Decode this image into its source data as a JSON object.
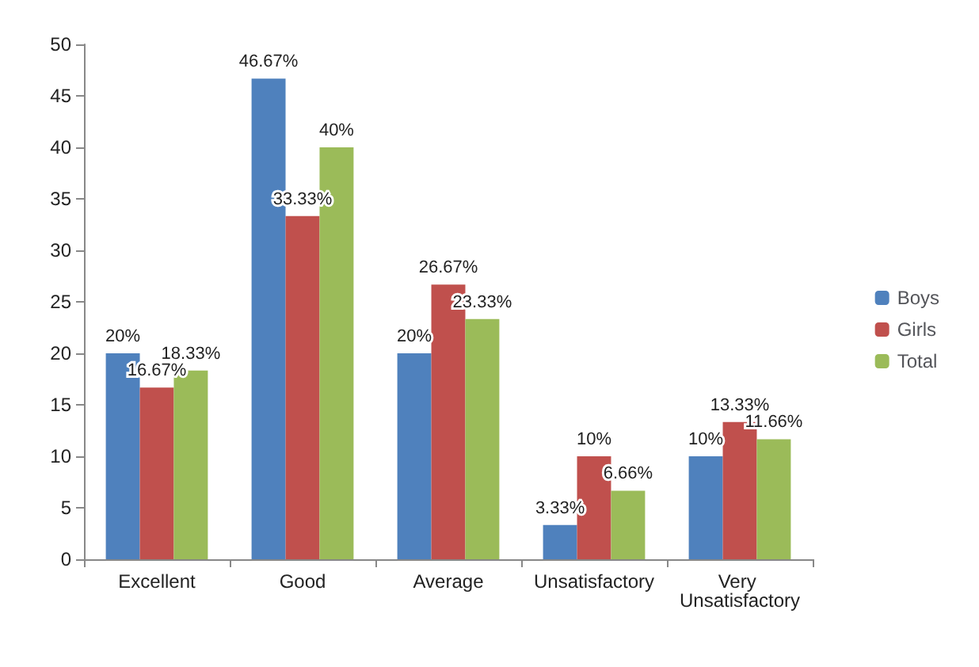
{
  "chart_data": {
    "type": "bar",
    "categories": [
      "Excellent",
      "Good",
      "Average",
      "Unsatisfactory",
      "Very Unsatisfactory"
    ],
    "series": [
      {
        "name": "Boys",
        "color": "#4f81bd",
        "values": [
          20,
          46.67,
          20,
          3.33,
          10
        ],
        "value_labels": [
          "20%",
          "46.67%",
          "20%",
          "3.33%",
          "10%"
        ]
      },
      {
        "name": "Girls",
        "color": "#c0504d",
        "values": [
          16.67,
          33.33,
          26.67,
          10,
          13.33
        ],
        "value_labels": [
          "16.67%",
          "33.33%",
          "26.67%",
          "10%",
          "13.33%"
        ]
      },
      {
        "name": "Total",
        "color": "#9bbb59",
        "values": [
          18.33,
          40,
          23.33,
          6.66,
          11.66
        ],
        "value_labels": [
          "18.33%",
          "40%",
          "23.33%",
          "6.66%",
          "11.66%"
        ]
      }
    ],
    "ylim": [
      0,
      50
    ],
    "yticks": [
      0,
      5,
      10,
      15,
      20,
      25,
      30,
      35,
      40,
      45,
      50
    ],
    "grid": false,
    "legend": "right"
  }
}
